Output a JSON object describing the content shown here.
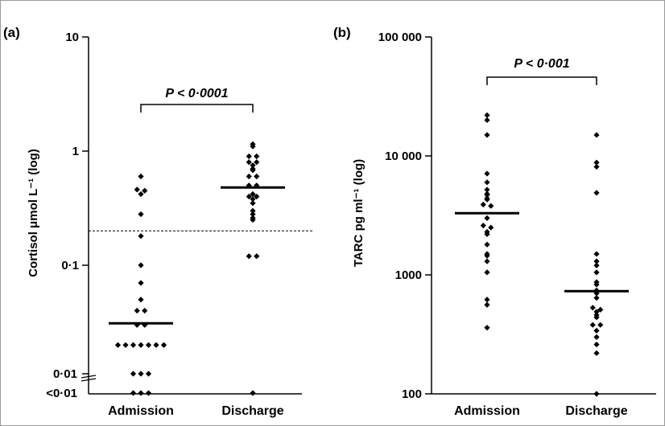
{
  "chart_data": [
    {
      "type": "scatter",
      "panel_label": "(a)",
      "ylabel": "Cortisol μmol L⁻¹ (log)",
      "yscale": "log",
      "ylim": [
        0.004,
        10
      ],
      "ytick_labels": [
        "10",
        "1",
        "0·1",
        "0·01",
        "<0·01"
      ],
      "categories": [
        "Admission",
        "Discharge"
      ],
      "significance": "P < 0·0001",
      "reference_line": 0.2,
      "medians": [
        0.031,
        0.48
      ],
      "series": [
        {
          "category": "Admission",
          "values": [
            0.6,
            0.46,
            0.42,
            0.45,
            0.28,
            0.18,
            0.1,
            0.07,
            0.05,
            0.04,
            0.04,
            0.03,
            0.03,
            0.02,
            0.02,
            0.02,
            0.02,
            0.02,
            0.02,
            0.02,
            0.01,
            0.01,
            0.01,
            "<0·01",
            "<0·01",
            "<0·01"
          ]
        },
        {
          "category": "Discharge",
          "values": [
            1.15,
            1.1,
            0.9,
            0.9,
            0.8,
            0.8,
            0.75,
            0.7,
            0.68,
            0.6,
            0.6,
            0.5,
            0.5,
            0.42,
            0.4,
            0.4,
            0.38,
            0.35,
            0.3,
            0.28,
            0.26,
            0.25,
            0.12,
            0.12,
            "<0·01"
          ]
        }
      ]
    },
    {
      "type": "scatter",
      "panel_label": "(b)",
      "ylabel": "TARC pg ml⁻¹ (log)",
      "yscale": "log",
      "ylim": [
        100,
        100000
      ],
      "ytick_labels": [
        "100 000",
        "10 000",
        "1000",
        "100"
      ],
      "categories": [
        "Admission",
        "Discharge"
      ],
      "significance": "P < 0·001",
      "medians": [
        3300,
        730
      ],
      "series": [
        {
          "category": "Admission",
          "values": [
            22000,
            20000,
            15000,
            7100,
            6000,
            5200,
            4800,
            4700,
            4400,
            4300,
            3900,
            3800,
            3000,
            2600,
            2500,
            2300,
            2200,
            1800,
            1500,
            1450,
            1300,
            1050,
            620,
            560,
            360
          ]
        },
        {
          "category": "Discharge",
          "values": [
            15000,
            8800,
            8100,
            4900,
            1500,
            1300,
            1200,
            1050,
            870,
            830,
            740,
            700,
            640,
            530,
            510,
            490,
            460,
            440,
            380,
            380,
            340,
            300,
            260,
            220,
            100
          ]
        }
      ]
    }
  ]
}
